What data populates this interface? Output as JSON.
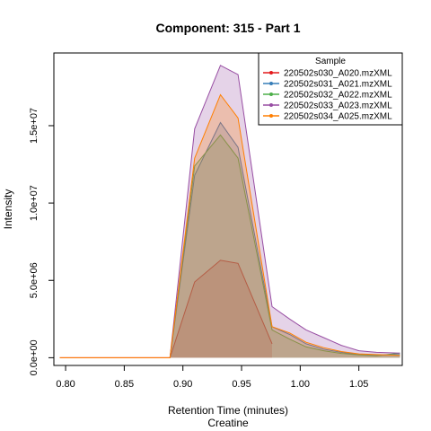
{
  "chart_data": {
    "type": "area",
    "title": "Component: 315 - Part 1",
    "xlabel": "Retention Time (minutes)",
    "xlabel2": "Creatine",
    "ylabel": "Intensity",
    "xlim": [
      0.79,
      1.087
    ],
    "ylim": [
      -500000,
      19700000
    ],
    "x_ticks": [
      "0.80",
      "0.85",
      "0.90",
      "0.95",
      "1.00",
      "1.05"
    ],
    "x_tick_values": [
      0.8,
      0.85,
      0.9,
      0.95,
      1.0,
      1.05
    ],
    "y_ticks": [
      "0.0e+00",
      "5.0e+06",
      "1.0e+07",
      "1.5e+07"
    ],
    "y_tick_values": [
      0,
      5000000,
      10000000,
      15000000
    ],
    "legend_title": "Sample",
    "legend_position": "top-right",
    "series": [
      {
        "name": "220502s030_A020.mzXML",
        "color": "#E41A1C",
        "x": [
          0.795,
          0.889,
          0.91,
          0.932,
          0.947,
          0.976
        ],
        "y": [
          0,
          0,
          4900000,
          6300000,
          6100000,
          900000
        ]
      },
      {
        "name": "220502s031_A021.mzXML",
        "color": "#377EB8",
        "x": [
          0.889,
          0.91,
          0.932,
          0.947,
          0.976,
          0.991,
          1.005,
          1.02,
          1.035,
          1.05,
          1.065,
          1.085
        ],
        "y": [
          0,
          11800000,
          15200000,
          13600000,
          2000000,
          1500000,
          900000,
          550000,
          350000,
          200000,
          150000,
          200000
        ]
      },
      {
        "name": "220502s032_A022.mzXML",
        "color": "#4DAF4A",
        "x": [
          0.889,
          0.91,
          0.932,
          0.947,
          0.976,
          0.991,
          1.005,
          1.02,
          1.035,
          1.05,
          1.065,
          1.085
        ],
        "y": [
          0,
          12400000,
          14400000,
          12900000,
          1800000,
          1200000,
          700000,
          450000,
          280000,
          180000,
          120000,
          300000
        ]
      },
      {
        "name": "220502s033_A023.mzXML",
        "color": "#984EA3",
        "x": [
          0.889,
          0.91,
          0.932,
          0.947,
          0.976,
          0.991,
          1.005,
          1.02,
          1.035,
          1.05,
          1.065,
          1.085
        ],
        "y": [
          0,
          14800000,
          18900000,
          18300000,
          3300000,
          2500000,
          1800000,
          1300000,
          800000,
          450000,
          350000,
          300000
        ]
      },
      {
        "name": "220502s034_A025.mzXML",
        "color": "#FF7F00",
        "x": [
          0.795,
          0.889,
          0.91,
          0.932,
          0.947,
          0.976,
          0.991,
          1.005,
          1.02,
          1.035,
          1.05,
          1.065,
          1.085
        ],
        "y": [
          0,
          0,
          12900000,
          17000000,
          15500000,
          2000000,
          1600000,
          1000000,
          650000,
          400000,
          250000,
          200000,
          150000
        ]
      }
    ]
  }
}
